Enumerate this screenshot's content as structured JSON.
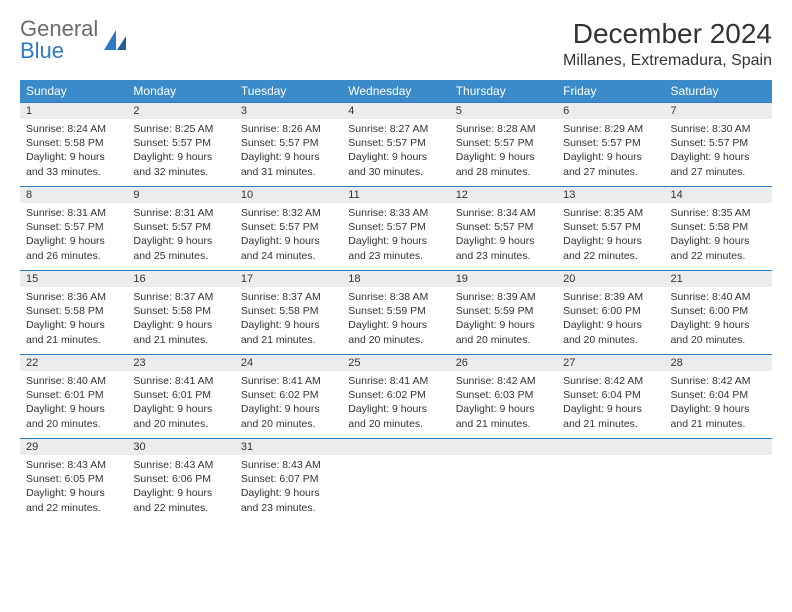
{
  "logo": {
    "word1": "General",
    "word2": "Blue"
  },
  "title": "December 2024",
  "location": "Millanes, Extremadura, Spain",
  "colors": {
    "header_bg": "#3b8bca",
    "header_text": "#ffffff",
    "daynum_bg": "#ececec",
    "daynum_border": "#2f7ac4",
    "body_text": "#333333",
    "page_bg": "#ffffff",
    "logo_gray": "#6b6b6b",
    "logo_blue": "#2f7ac4"
  },
  "fonts": {
    "title_size_pt": 21,
    "location_size_pt": 12,
    "weekday_size_pt": 9,
    "daynum_size_pt": 8.5,
    "body_size_pt": 8
  },
  "weekdays": [
    "Sunday",
    "Monday",
    "Tuesday",
    "Wednesday",
    "Thursday",
    "Friday",
    "Saturday"
  ],
  "weeks": [
    [
      {
        "n": "1",
        "sunrise": "Sunrise: 8:24 AM",
        "sunset": "Sunset: 5:58 PM",
        "daylight": "Daylight: 9 hours and 33 minutes."
      },
      {
        "n": "2",
        "sunrise": "Sunrise: 8:25 AM",
        "sunset": "Sunset: 5:57 PM",
        "daylight": "Daylight: 9 hours and 32 minutes."
      },
      {
        "n": "3",
        "sunrise": "Sunrise: 8:26 AM",
        "sunset": "Sunset: 5:57 PM",
        "daylight": "Daylight: 9 hours and 31 minutes."
      },
      {
        "n": "4",
        "sunrise": "Sunrise: 8:27 AM",
        "sunset": "Sunset: 5:57 PM",
        "daylight": "Daylight: 9 hours and 30 minutes."
      },
      {
        "n": "5",
        "sunrise": "Sunrise: 8:28 AM",
        "sunset": "Sunset: 5:57 PM",
        "daylight": "Daylight: 9 hours and 28 minutes."
      },
      {
        "n": "6",
        "sunrise": "Sunrise: 8:29 AM",
        "sunset": "Sunset: 5:57 PM",
        "daylight": "Daylight: 9 hours and 27 minutes."
      },
      {
        "n": "7",
        "sunrise": "Sunrise: 8:30 AM",
        "sunset": "Sunset: 5:57 PM",
        "daylight": "Daylight: 9 hours and 27 minutes."
      }
    ],
    [
      {
        "n": "8",
        "sunrise": "Sunrise: 8:31 AM",
        "sunset": "Sunset: 5:57 PM",
        "daylight": "Daylight: 9 hours and 26 minutes."
      },
      {
        "n": "9",
        "sunrise": "Sunrise: 8:31 AM",
        "sunset": "Sunset: 5:57 PM",
        "daylight": "Daylight: 9 hours and 25 minutes."
      },
      {
        "n": "10",
        "sunrise": "Sunrise: 8:32 AM",
        "sunset": "Sunset: 5:57 PM",
        "daylight": "Daylight: 9 hours and 24 minutes."
      },
      {
        "n": "11",
        "sunrise": "Sunrise: 8:33 AM",
        "sunset": "Sunset: 5:57 PM",
        "daylight": "Daylight: 9 hours and 23 minutes."
      },
      {
        "n": "12",
        "sunrise": "Sunrise: 8:34 AM",
        "sunset": "Sunset: 5:57 PM",
        "daylight": "Daylight: 9 hours and 23 minutes."
      },
      {
        "n": "13",
        "sunrise": "Sunrise: 8:35 AM",
        "sunset": "Sunset: 5:57 PM",
        "daylight": "Daylight: 9 hours and 22 minutes."
      },
      {
        "n": "14",
        "sunrise": "Sunrise: 8:35 AM",
        "sunset": "Sunset: 5:58 PM",
        "daylight": "Daylight: 9 hours and 22 minutes."
      }
    ],
    [
      {
        "n": "15",
        "sunrise": "Sunrise: 8:36 AM",
        "sunset": "Sunset: 5:58 PM",
        "daylight": "Daylight: 9 hours and 21 minutes."
      },
      {
        "n": "16",
        "sunrise": "Sunrise: 8:37 AM",
        "sunset": "Sunset: 5:58 PM",
        "daylight": "Daylight: 9 hours and 21 minutes."
      },
      {
        "n": "17",
        "sunrise": "Sunrise: 8:37 AM",
        "sunset": "Sunset: 5:58 PM",
        "daylight": "Daylight: 9 hours and 21 minutes."
      },
      {
        "n": "18",
        "sunrise": "Sunrise: 8:38 AM",
        "sunset": "Sunset: 5:59 PM",
        "daylight": "Daylight: 9 hours and 20 minutes."
      },
      {
        "n": "19",
        "sunrise": "Sunrise: 8:39 AM",
        "sunset": "Sunset: 5:59 PM",
        "daylight": "Daylight: 9 hours and 20 minutes."
      },
      {
        "n": "20",
        "sunrise": "Sunrise: 8:39 AM",
        "sunset": "Sunset: 6:00 PM",
        "daylight": "Daylight: 9 hours and 20 minutes."
      },
      {
        "n": "21",
        "sunrise": "Sunrise: 8:40 AM",
        "sunset": "Sunset: 6:00 PM",
        "daylight": "Daylight: 9 hours and 20 minutes."
      }
    ],
    [
      {
        "n": "22",
        "sunrise": "Sunrise: 8:40 AM",
        "sunset": "Sunset: 6:01 PM",
        "daylight": "Daylight: 9 hours and 20 minutes."
      },
      {
        "n": "23",
        "sunrise": "Sunrise: 8:41 AM",
        "sunset": "Sunset: 6:01 PM",
        "daylight": "Daylight: 9 hours and 20 minutes."
      },
      {
        "n": "24",
        "sunrise": "Sunrise: 8:41 AM",
        "sunset": "Sunset: 6:02 PM",
        "daylight": "Daylight: 9 hours and 20 minutes."
      },
      {
        "n": "25",
        "sunrise": "Sunrise: 8:41 AM",
        "sunset": "Sunset: 6:02 PM",
        "daylight": "Daylight: 9 hours and 20 minutes."
      },
      {
        "n": "26",
        "sunrise": "Sunrise: 8:42 AM",
        "sunset": "Sunset: 6:03 PM",
        "daylight": "Daylight: 9 hours and 21 minutes."
      },
      {
        "n": "27",
        "sunrise": "Sunrise: 8:42 AM",
        "sunset": "Sunset: 6:04 PM",
        "daylight": "Daylight: 9 hours and 21 minutes."
      },
      {
        "n": "28",
        "sunrise": "Sunrise: 8:42 AM",
        "sunset": "Sunset: 6:04 PM",
        "daylight": "Daylight: 9 hours and 21 minutes."
      }
    ],
    [
      {
        "n": "29",
        "sunrise": "Sunrise: 8:43 AM",
        "sunset": "Sunset: 6:05 PM",
        "daylight": "Daylight: 9 hours and 22 minutes."
      },
      {
        "n": "30",
        "sunrise": "Sunrise: 8:43 AM",
        "sunset": "Sunset: 6:06 PM",
        "daylight": "Daylight: 9 hours and 22 minutes."
      },
      {
        "n": "31",
        "sunrise": "Sunrise: 8:43 AM",
        "sunset": "Sunset: 6:07 PM",
        "daylight": "Daylight: 9 hours and 23 minutes."
      },
      null,
      null,
      null,
      null
    ]
  ]
}
